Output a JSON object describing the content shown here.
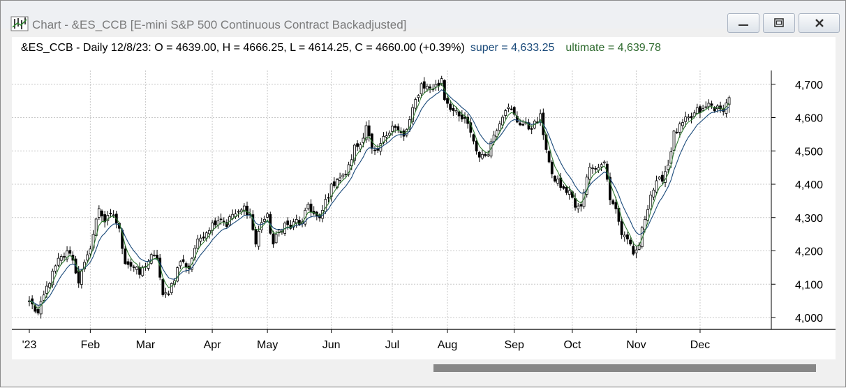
{
  "window": {
    "title": "Chart - &ES_CCB [E-mini S&P 500 Continuous Contract Backadjusted]",
    "buttons": {
      "minimize": "minimize-icon",
      "maximize": "maximize-icon",
      "close": "close-icon"
    }
  },
  "header": {
    "symbol_line": "&ES_CCB - Daily 12/8/23:  O = 4639.00,  H = 4666.25,  L = 4614.25,  C = 4660.00 (+0.39%)",
    "super_label": "super = 4,633.25",
    "ultimate_label": "ultimate = 4,639.78"
  },
  "colors": {
    "candle": "#000000",
    "super_line": "#1a4a7a",
    "ultimate_line": "#2f7a2f",
    "grid": "#c8c8c8"
  },
  "chart_data": {
    "type": "candlestick",
    "title": "&ES_CCB - Daily 12/8/23",
    "ohlc_last": {
      "date": "12/8/23",
      "open": 4639.0,
      "high": 4666.25,
      "low": 4614.25,
      "close": 4660.0,
      "change_pct": "+0.39%"
    },
    "ylim": [
      3980,
      4740
    ],
    "y_ticks": [
      4000,
      4100,
      4200,
      4300,
      4400,
      4500,
      4600,
      4700
    ],
    "y_tick_labels": [
      "4,000",
      "4,100",
      "4,200",
      "4,300",
      "4,400",
      "4,500",
      "4,600",
      "4,700"
    ],
    "x_tick_labels": [
      "'23",
      "Feb",
      "Mar",
      "Apr",
      "May",
      "Jun",
      "Jul",
      "Aug",
      "Sep",
      "Oct",
      "Nov",
      "Dec"
    ],
    "x_tick_index": [
      0,
      21,
      40,
      63,
      82,
      104,
      125,
      144,
      167,
      187,
      209,
      231
    ],
    "grid": true,
    "series": [
      {
        "name": "super",
        "last": "4,633.25"
      },
      {
        "name": "ultimate",
        "last": "4,639.78"
      }
    ],
    "close_anchors": [
      [
        0,
        4050
      ],
      [
        3,
        4010
      ],
      [
        6,
        4090
      ],
      [
        10,
        4170
      ],
      [
        14,
        4200
      ],
      [
        17,
        4110
      ],
      [
        20,
        4180
      ],
      [
        22,
        4250
      ],
      [
        24,
        4330
      ],
      [
        26,
        4290
      ],
      [
        29,
        4310
      ],
      [
        31,
        4260
      ],
      [
        33,
        4170
      ],
      [
        36,
        4150
      ],
      [
        38,
        4130
      ],
      [
        40,
        4160
      ],
      [
        42,
        4180
      ],
      [
        44,
        4180
      ],
      [
        46,
        4060
      ],
      [
        48,
        4080
      ],
      [
        50,
        4120
      ],
      [
        52,
        4170
      ],
      [
        55,
        4150
      ],
      [
        57,
        4210
      ],
      [
        59,
        4240
      ],
      [
        62,
        4270
      ],
      [
        64,
        4290
      ],
      [
        66,
        4300
      ],
      [
        68,
        4280
      ],
      [
        70,
        4310
      ],
      [
        72,
        4310
      ],
      [
        74,
        4330
      ],
      [
        76,
        4310
      ],
      [
        78,
        4220
      ],
      [
        80,
        4290
      ],
      [
        82,
        4300
      ],
      [
        84,
        4220
      ],
      [
        86,
        4260
      ],
      [
        88,
        4280
      ],
      [
        90,
        4270
      ],
      [
        92,
        4290
      ],
      [
        94,
        4280
      ],
      [
        96,
        4340
      ],
      [
        98,
        4310
      ],
      [
        100,
        4290
      ],
      [
        102,
        4350
      ],
      [
        104,
        4390
      ],
      [
        106,
        4420
      ],
      [
        108,
        4420
      ],
      [
        110,
        4450
      ],
      [
        112,
        4510
      ],
      [
        114,
        4520
      ],
      [
        116,
        4580
      ],
      [
        118,
        4500
      ],
      [
        120,
        4490
      ],
      [
        121,
        4520
      ],
      [
        123,
        4550
      ],
      [
        125,
        4580
      ],
      [
        127,
        4560
      ],
      [
        129,
        4540
      ],
      [
        131,
        4590
      ],
      [
        133,
        4650
      ],
      [
        135,
        4700
      ],
      [
        137,
        4690
      ],
      [
        139,
        4690
      ],
      [
        141,
        4700
      ],
      [
        142,
        4720
      ],
      [
        143,
        4660
      ],
      [
        146,
        4620
      ],
      [
        148,
        4600
      ],
      [
        150,
        4590
      ],
      [
        152,
        4560
      ],
      [
        154,
        4500
      ],
      [
        156,
        4480
      ],
      [
        158,
        4500
      ],
      [
        160,
        4550
      ],
      [
        162,
        4590
      ],
      [
        164,
        4630
      ],
      [
        166,
        4620
      ],
      [
        168,
        4590
      ],
      [
        170,
        4580
      ],
      [
        172,
        4570
      ],
      [
        174,
        4580
      ],
      [
        176,
        4600
      ],
      [
        178,
        4510
      ],
      [
        180,
        4420
      ],
      [
        182,
        4410
      ],
      [
        184,
        4380
      ],
      [
        186,
        4380
      ],
      [
        188,
        4330
      ],
      [
        190,
        4330
      ],
      [
        192,
        4430
      ],
      [
        194,
        4460
      ],
      [
        196,
        4450
      ],
      [
        198,
        4470
      ],
      [
        200,
        4350
      ],
      [
        202,
        4330
      ],
      [
        204,
        4250
      ],
      [
        206,
        4240
      ],
      [
        208,
        4180
      ],
      [
        210,
        4220
      ],
      [
        212,
        4300
      ],
      [
        214,
        4370
      ],
      [
        216,
        4400
      ],
      [
        218,
        4420
      ],
      [
        220,
        4460
      ],
      [
        222,
        4550
      ],
      [
        224,
        4570
      ],
      [
        226,
        4590
      ],
      [
        228,
        4600
      ],
      [
        230,
        4620
      ],
      [
        232,
        4620
      ],
      [
        234,
        4640
      ],
      [
        236,
        4630
      ],
      [
        238,
        4620
      ],
      [
        240,
        4640
      ],
      [
        241,
        4660
      ]
    ]
  }
}
